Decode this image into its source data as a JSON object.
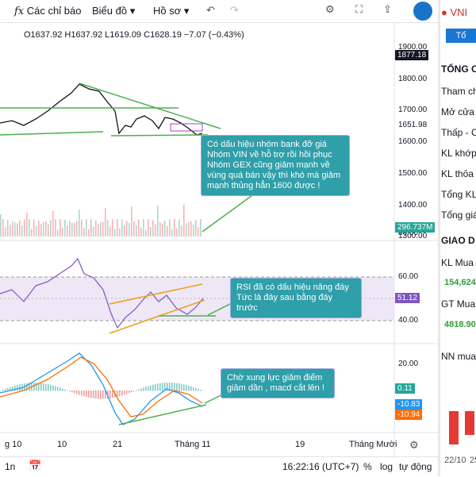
{
  "toolbar": {
    "indicators": "Các chỉ báo",
    "chart": "Biểu đồ",
    "profile": "Hồ sơ"
  },
  "ohlc": {
    "open": "O1637.92",
    "high": "H1637.92",
    "low": "L1619.09",
    "close": "C1628.19",
    "change": "−7.07 (−0.43%)"
  },
  "price_axis": {
    "ticks": [
      {
        "value": 1900,
        "label": "1900.00"
      },
      {
        "value": 1800,
        "label": "1800.00"
      },
      {
        "value": 1700,
        "label": "1700.00"
      },
      {
        "value": 1600,
        "label": "1600.00"
      },
      {
        "value": 1500,
        "label": "1500.00"
      },
      {
        "value": 1400,
        "label": "1400.00"
      },
      {
        "value": 1300,
        "label": "1300.00"
      }
    ],
    "high_badge": {
      "value": 1877.18,
      "label": "1877.18"
    },
    "ma_label": {
      "value": 1651.98,
      "label": "1651.98"
    },
    "volume_badge": "296.737M"
  },
  "rsi_axis": {
    "ticks": [
      {
        "value": 80,
        "label": "80.00"
      },
      {
        "value": 60,
        "label": "60.00"
      },
      {
        "value": 40,
        "label": "40.00"
      },
      {
        "value": 20,
        "label": "20.00"
      }
    ],
    "badge": "51.12"
  },
  "macd_axis": {
    "badges": [
      "0.11",
      "-10.83",
      "-10.94"
    ]
  },
  "annotations": [
    "Có dấu hiệu nhóm bank đỡ giá Nhóm VIN về hỗ trợ rồi hồi phục Nhóm GEX cũng giảm mạnh về vùng quá bán vậy thì khó mà giảm mạnh thủng hẳn 1600 được !",
    "RSI đã có dấu hiệu nâng đáy Tức là đáy sau bằng đáy trước",
    "Chờ xung lực giảm điểm giảm dần , macd cắt lên !"
  ],
  "x_axis": [
    "g 10",
    "10",
    "21",
    "Tháng 11",
    "19",
    "Tháng Mười"
  ],
  "bottom": {
    "interval": "1n",
    "time": "16:22:16 (UTC+7)",
    "percent": "%",
    "log": "log",
    "auto": "tự động"
  },
  "right_panel": {
    "symbol": "VNI",
    "button": "Tổ",
    "section1": "TỔNG C",
    "rows": [
      "Tham ch",
      "Mở cửa",
      "Thấp - C",
      "KL khớp",
      "KL thỏa",
      "Tổng KL",
      "Tổng giá"
    ],
    "section2": "GIAO D",
    "buy_vol_label": "KL Mua",
    "buy_vol": "154,624",
    "buy_val_label": "GT Mua",
    "buy_val": "4818.90",
    "foreign": "NN mua",
    "dates": [
      "22/10",
      "25"
    ]
  }
}
